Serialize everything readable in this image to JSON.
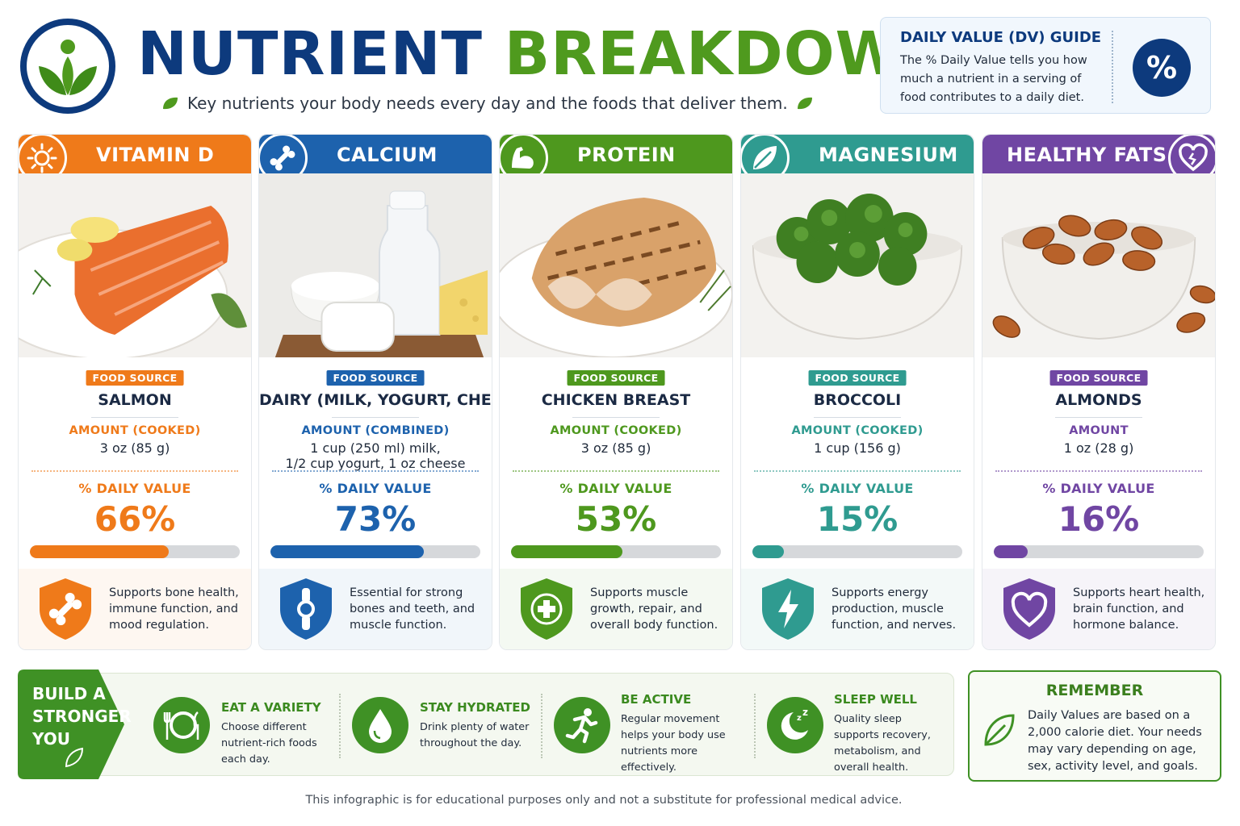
{
  "header": {
    "title_part1": "NUTRIENT",
    "title_part2": "BREAKDOWN",
    "subtitle": "Key nutrients your body needs every day and the foods that deliver them."
  },
  "dv_guide": {
    "title": "DAILY VALUE (DV) GUIDE",
    "text": "The % Daily Value tells you how much a nutrient in a serving of food contributes to a daily diet.",
    "symbol": "%"
  },
  "cards": [
    {
      "nutrient": "VITAMIN D",
      "icon": "sun-icon",
      "color": "#ef7a1a",
      "badge": "FOOD SOURCE",
      "food": "SALMON",
      "amount_label": "AMOUNT (COOKED)",
      "amount": "3 oz (85 g)",
      "dv_label": "% DAILY VALUE",
      "dv_text": "66%",
      "dv_value": 66,
      "benefit_icon": "bone-icon",
      "benefit": "Supports bone health, immune function, and mood regulation."
    },
    {
      "nutrient": "CALCIUM",
      "icon": "bone-icon",
      "color": "#1d62ad",
      "badge": "FOOD SOURCE",
      "food": "DAIRY (MILK, YOGURT, CHEESE)",
      "amount_label": "AMOUNT (COMBINED)",
      "amount": "1 cup (250 ml) milk,\n1/2 cup yogurt, 1 oz cheese",
      "dv_label": "% DAILY VALUE",
      "dv_text": "73%",
      "dv_value": 73,
      "benefit_icon": "joint-icon",
      "benefit": "Essential for strong bones and teeth, and muscle function."
    },
    {
      "nutrient": "PROTEIN",
      "icon": "muscle-icon",
      "color": "#4e981e",
      "badge": "FOOD SOURCE",
      "food": "CHICKEN BREAST",
      "amount_label": "AMOUNT (COOKED)",
      "amount": "3 oz (85 g)",
      "dv_label": "% DAILY VALUE",
      "dv_text": "53%",
      "dv_value": 53,
      "benefit_icon": "health-cross-icon",
      "benefit": "Supports muscle growth, repair, and overall body function."
    },
    {
      "nutrient": "MAGNESIUM",
      "icon": "leaf-icon",
      "color": "#2f9b90",
      "badge": "FOOD SOURCE",
      "food": "BROCCOLI",
      "amount_label": "AMOUNT (COOKED)",
      "amount": "1 cup (156 g)",
      "dv_label": "% DAILY VALUE",
      "dv_text": "15%",
      "dv_value": 15,
      "benefit_icon": "lightning-icon",
      "benefit": "Supports energy production, muscle function, and nerves."
    },
    {
      "nutrient": "HEALTHY FATS",
      "icon": "heart-icon",
      "color": "#7046a3",
      "badge": "FOOD SOURCE",
      "food": "ALMONDS",
      "amount_label": "AMOUNT",
      "amount": "1 oz (28 g)",
      "dv_label": "% DAILY VALUE",
      "dv_text": "16%",
      "dv_value": 16,
      "benefit_icon": "heart-icon",
      "benefit": "Supports heart health, brain function, and hormone balance."
    }
  ],
  "banner": {
    "tag": "BUILD A STRONGER YOU",
    "tips": [
      {
        "title": "EAT A VARIETY",
        "text": "Choose different nutrient-rich foods each day.",
        "icon": "plate-icon"
      },
      {
        "title": "STAY HYDRATED",
        "text": "Drink plenty of water throughout the day.",
        "icon": "water-drop-icon"
      },
      {
        "title": "BE ACTIVE",
        "text": "Regular movement helps your body use nutrients more effectively.",
        "icon": "runner-icon"
      },
      {
        "title": "SLEEP WELL",
        "text": "Quality sleep supports recovery, metabolism, and overall health.",
        "icon": "moon-icon"
      }
    ]
  },
  "remember": {
    "title": "REMEMBER",
    "text": "Daily Values are based on a 2,000 calorie diet. Your needs may vary depending on age, sex, activity level, and goals."
  },
  "footer": "This infographic is for educational purposes only and not a substitute for professional medical advice."
}
